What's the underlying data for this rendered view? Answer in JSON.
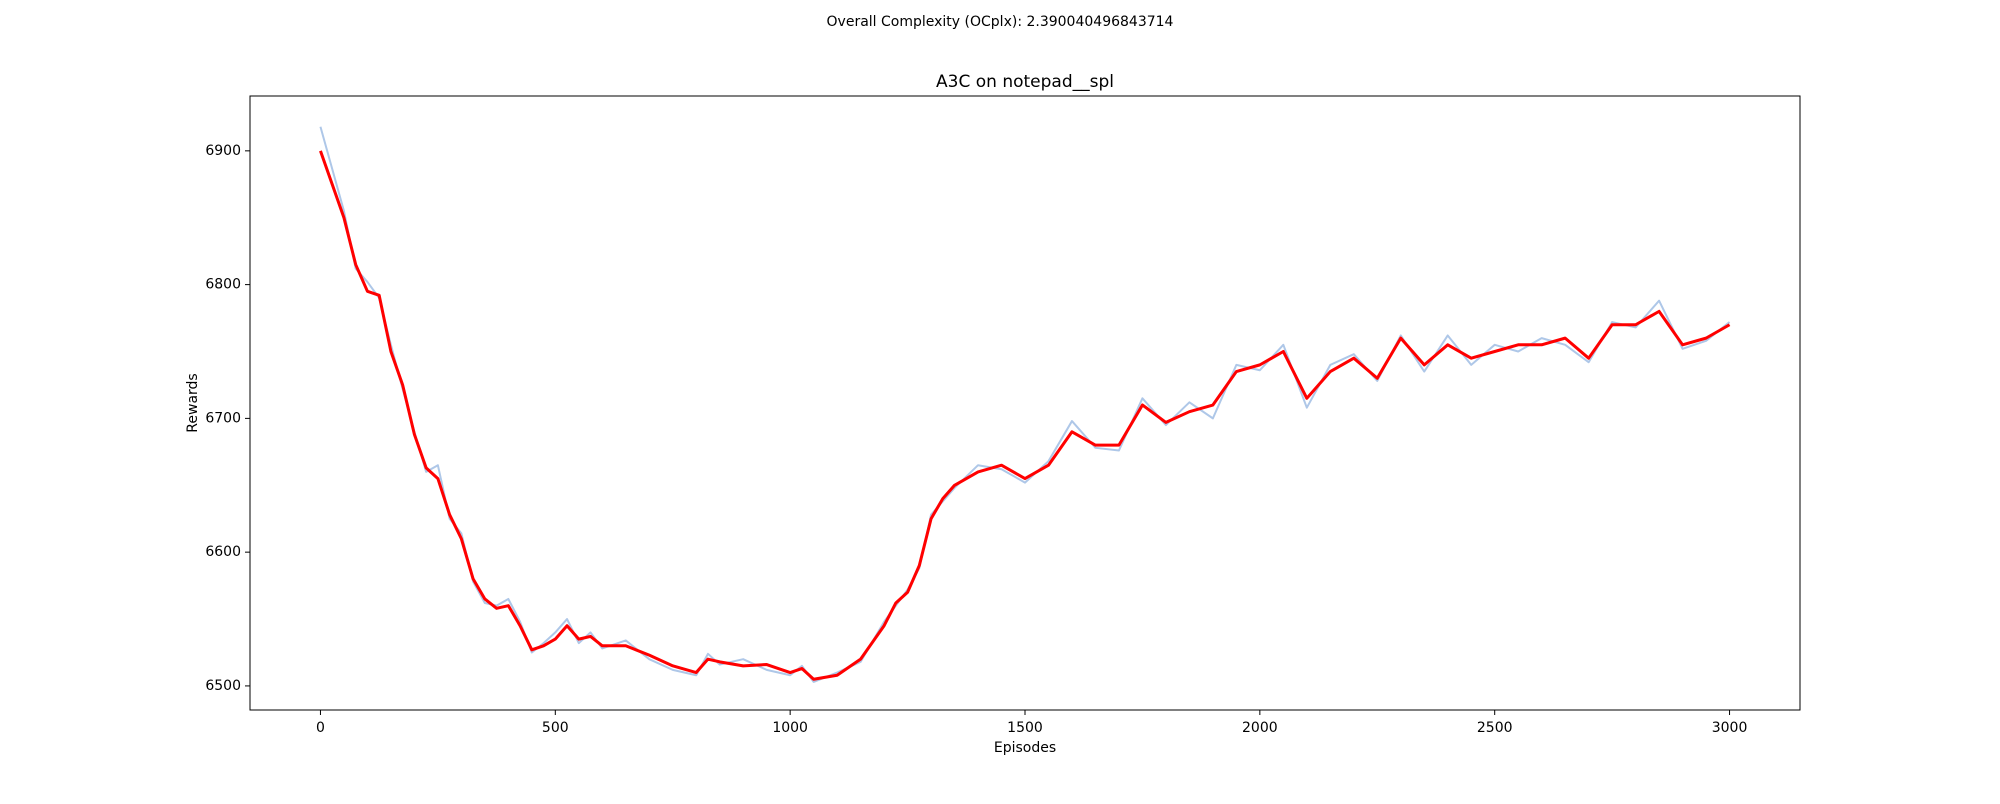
{
  "chart_data": {
    "type": "line",
    "suptitle": "Overall Complexity (OCplx): 2.390040496843714",
    "suptitle_color": "#ff0000",
    "title": "A3C on notepad__spl",
    "x_label": "Episodes",
    "y_label": "Rewards",
    "x": [
      0,
      50,
      75,
      100,
      125,
      150,
      175,
      200,
      225,
      250,
      275,
      300,
      325,
      350,
      375,
      400,
      425,
      450,
      475,
      500,
      525,
      550,
      575,
      600,
      650,
      700,
      750,
      800,
      825,
      850,
      900,
      950,
      1000,
      1025,
      1050,
      1100,
      1150,
      1200,
      1225,
      1250,
      1275,
      1300,
      1325,
      1350,
      1400,
      1450,
      1500,
      1550,
      1600,
      1650,
      1700,
      1750,
      1800,
      1850,
      1900,
      1950,
      2000,
      2050,
      2100,
      2150,
      2200,
      2250,
      2300,
      2350,
      2400,
      2450,
      2500,
      2550,
      2600,
      2650,
      2700,
      2750,
      2800,
      2850,
      2900,
      2950,
      3000
    ],
    "series": [
      {
        "color": "#aec7e8",
        "width": 2,
        "values": [
          6918,
          6855,
          6812,
          6802,
          6790,
          6755,
          6722,
          6690,
          6660,
          6665,
          6625,
          6614,
          6578,
          6562,
          6560,
          6565,
          6548,
          6525,
          6532,
          6540,
          6550,
          6532,
          6540,
          6528,
          6534,
          6520,
          6512,
          6508,
          6524,
          6516,
          6520,
          6512,
          6508,
          6515,
          6503,
          6510,
          6518,
          6548,
          6560,
          6572,
          6588,
          6628,
          6638,
          6648,
          6665,
          6662,
          6652,
          6668,
          6698,
          6678,
          6676,
          6715,
          6695,
          6712,
          6700,
          6740,
          6736,
          6755,
          6708,
          6740,
          6748,
          6728,
          6762,
          6735,
          6762,
          6740,
          6755,
          6750,
          6760,
          6755,
          6742,
          6772,
          6768,
          6788,
          6752,
          6758,
          6772
        ]
      },
      {
        "color": "#ff0000",
        "width": 3,
        "values": [
          6900,
          6850,
          6815,
          6795,
          6792,
          6750,
          6725,
          6688,
          6663,
          6655,
          6628,
          6610,
          6580,
          6565,
          6558,
          6560,
          6545,
          6527,
          6530,
          6535,
          6545,
          6535,
          6537,
          6530,
          6530,
          6523,
          6515,
          6510,
          6520,
          6518,
          6515,
          6516,
          6510,
          6513,
          6505,
          6508,
          6520,
          6545,
          6562,
          6570,
          6590,
          6625,
          6640,
          6650,
          6660,
          6665,
          6655,
          6665,
          6690,
          6680,
          6680,
          6710,
          6697,
          6705,
          6710,
          6735,
          6740,
          6750,
          6715,
          6735,
          6745,
          6730,
          6760,
          6740,
          6755,
          6745,
          6750,
          6755,
          6755,
          6760,
          6745,
          6770,
          6770,
          6780,
          6755,
          6760,
          6770
        ]
      }
    ],
    "xlim": [
      -150,
      3150
    ],
    "ylim": [
      6482,
      6941
    ],
    "xticks": [
      0,
      500,
      1000,
      1500,
      2000,
      2500,
      3000
    ],
    "yticks": [
      6500,
      6600,
      6700,
      6800,
      6900
    ],
    "grid": false
  }
}
